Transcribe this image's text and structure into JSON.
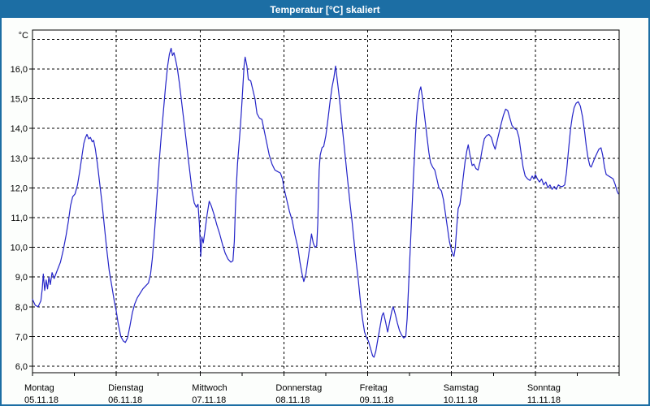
{
  "window": {
    "title": "Temperatur [°C] skaliert"
  },
  "colors": {
    "titlebar_bg": "#1c6ea4",
    "window_border": "#1c6ea4",
    "title_text": "#ffffff",
    "page_bg": "#fcfefc",
    "plot_bg": "#ffffff",
    "grid": "#000000",
    "line": "#2424c8"
  },
  "chart_data": {
    "type": "line",
    "title": "Temperatur [°C] skaliert",
    "y_unit_label": "°C",
    "ylabel": "Temperatur [°C]",
    "xlabel": "",
    "ylim": [
      5.78,
      17.31
    ],
    "grid": "dashed",
    "legend": "none",
    "x_hours_total": 168,
    "x_minor_tick_hours": 12,
    "y_gridline_values": [
      6,
      7,
      8,
      9,
      10,
      11,
      12,
      13,
      14,
      15,
      16,
      17
    ],
    "y_tick_values": [
      6,
      7,
      8,
      9,
      10,
      11,
      12,
      13,
      14,
      15,
      16
    ],
    "y_tick_labels": [
      "6,0",
      "7,0",
      "8,0",
      "9,0",
      "10,0",
      "11,0",
      "12,0",
      "13,0",
      "14,0",
      "15,0",
      "16,0"
    ],
    "days": [
      {
        "name": "Montag",
        "date": "05.11.18"
      },
      {
        "name": "Dienstag",
        "date": "06.11.18"
      },
      {
        "name": "Mittwoch",
        "date": "07.11.18"
      },
      {
        "name": "Donnerstag",
        "date": "08.11.18"
      },
      {
        "name": "Freitag",
        "date": "09.11.18"
      },
      {
        "name": "Samstag",
        "date": "10.11.18"
      },
      {
        "name": "Sonntag",
        "date": "11.11.18"
      }
    ],
    "series": [
      {
        "name": "Temperatur [°C]",
        "color": "#2424c8",
        "points": [
          [
            0,
            8.25
          ],
          [
            0.8,
            8.05
          ],
          [
            1.6,
            8.0
          ],
          [
            2.4,
            8.2
          ],
          [
            2.8,
            8.6
          ],
          [
            3.1,
            9.1
          ],
          [
            3.5,
            8.55
          ],
          [
            3.9,
            8.9
          ],
          [
            4.3,
            8.6
          ],
          [
            4.7,
            9.0
          ],
          [
            5.1,
            8.75
          ],
          [
            5.6,
            9.15
          ],
          [
            6.2,
            8.95
          ],
          [
            7,
            9.2
          ],
          [
            8,
            9.5
          ],
          [
            8.8,
            9.9
          ],
          [
            9.6,
            10.4
          ],
          [
            10.3,
            10.9
          ],
          [
            10.9,
            11.4
          ],
          [
            11.5,
            11.7
          ],
          [
            12.2,
            11.8
          ],
          [
            12.9,
            12.1
          ],
          [
            13.6,
            12.6
          ],
          [
            14.2,
            13.1
          ],
          [
            14.7,
            13.5
          ],
          [
            15.2,
            13.7
          ],
          [
            15.6,
            13.8
          ],
          [
            16.1,
            13.65
          ],
          [
            16.6,
            13.7
          ],
          [
            17.1,
            13.55
          ],
          [
            17.5,
            13.6
          ],
          [
            18,
            13.3
          ],
          [
            18.6,
            12.8
          ],
          [
            19.2,
            12.2
          ],
          [
            19.9,
            11.5
          ],
          [
            20.6,
            10.7
          ],
          [
            21.3,
            9.9
          ],
          [
            22,
            9.2
          ],
          [
            22.7,
            8.7
          ],
          [
            23.4,
            8.2
          ],
          [
            24,
            7.85
          ],
          [
            24.6,
            7.4
          ],
          [
            25.3,
            7.0
          ],
          [
            26,
            6.85
          ],
          [
            26.6,
            6.8
          ],
          [
            27.2,
            6.95
          ],
          [
            27.9,
            7.35
          ],
          [
            28.6,
            7.8
          ],
          [
            29.3,
            8.1
          ],
          [
            30,
            8.3
          ],
          [
            30.8,
            8.45
          ],
          [
            31.6,
            8.6
          ],
          [
            32.4,
            8.7
          ],
          [
            33.2,
            8.8
          ],
          [
            33.8,
            9.1
          ],
          [
            34.3,
            9.6
          ],
          [
            34.8,
            10.3
          ],
          [
            35.3,
            11.1
          ],
          [
            35.8,
            12.0
          ],
          [
            36.3,
            12.9
          ],
          [
            36.9,
            13.8
          ],
          [
            37.5,
            14.6
          ],
          [
            38.1,
            15.4
          ],
          [
            38.7,
            16.1
          ],
          [
            39.2,
            16.5
          ],
          [
            39.7,
            16.7
          ],
          [
            40.1,
            16.45
          ],
          [
            40.5,
            16.55
          ],
          [
            41,
            16.3
          ],
          [
            41.5,
            16.0
          ],
          [
            42.1,
            15.5
          ],
          [
            42.7,
            14.9
          ],
          [
            43.3,
            14.3
          ],
          [
            43.9,
            13.7
          ],
          [
            44.5,
            13.1
          ],
          [
            45.1,
            12.5
          ],
          [
            45.7,
            11.9
          ],
          [
            46.3,
            11.5
          ],
          [
            46.9,
            11.35
          ],
          [
            47.4,
            11.45
          ],
          [
            47.8,
            10.8
          ],
          [
            48.2,
            9.7
          ],
          [
            48.5,
            10.35
          ],
          [
            48.9,
            10.15
          ],
          [
            49.4,
            10.55
          ],
          [
            50,
            11.1
          ],
          [
            50.6,
            11.55
          ],
          [
            51.2,
            11.4
          ],
          [
            52,
            11.1
          ],
          [
            52.8,
            10.75
          ],
          [
            53.6,
            10.45
          ],
          [
            54.4,
            10.1
          ],
          [
            55.2,
            9.8
          ],
          [
            56,
            9.6
          ],
          [
            56.8,
            9.5
          ],
          [
            57.4,
            9.55
          ],
          [
            57.8,
            10.2
          ],
          [
            58.1,
            11.3
          ],
          [
            58.4,
            12.1
          ],
          [
            58.7,
            12.8
          ],
          [
            59.1,
            13.4
          ],
          [
            59.5,
            14.0
          ],
          [
            59.9,
            14.7
          ],
          [
            60.3,
            15.5
          ],
          [
            60.6,
            16.1
          ],
          [
            60.9,
            16.4
          ],
          [
            61.4,
            16.1
          ],
          [
            61.8,
            15.65
          ],
          [
            62.5,
            15.6
          ],
          [
            63.1,
            15.3
          ],
          [
            63.7,
            15.0
          ],
          [
            64.3,
            14.5
          ],
          [
            65,
            14.35
          ],
          [
            65.7,
            14.3
          ],
          [
            66.4,
            13.9
          ],
          [
            67.1,
            13.5
          ],
          [
            67.8,
            13.1
          ],
          [
            68.6,
            12.8
          ],
          [
            69.4,
            12.6
          ],
          [
            70.2,
            12.55
          ],
          [
            71,
            12.5
          ],
          [
            71.6,
            12.3
          ],
          [
            72,
            12.0
          ],
          [
            72.8,
            11.6
          ],
          [
            73.6,
            11.2
          ],
          [
            74.4,
            10.9
          ],
          [
            75.2,
            10.4
          ],
          [
            76,
            10.0
          ],
          [
            76.6,
            9.5
          ],
          [
            77.2,
            9.1
          ],
          [
            77.7,
            8.85
          ],
          [
            78.3,
            9.1
          ],
          [
            78.9,
            9.6
          ],
          [
            79.5,
            10.1
          ],
          [
            79.9,
            10.45
          ],
          [
            80.4,
            10.15
          ],
          [
            80.9,
            10.0
          ],
          [
            81.4,
            10.05
          ],
          [
            81.7,
            10.8
          ],
          [
            81.9,
            11.8
          ],
          [
            82.1,
            12.6
          ],
          [
            82.4,
            13.1
          ],
          [
            82.9,
            13.35
          ],
          [
            83.4,
            13.4
          ],
          [
            84,
            13.75
          ],
          [
            84.6,
            14.3
          ],
          [
            85.2,
            14.9
          ],
          [
            85.8,
            15.4
          ],
          [
            86.3,
            15.7
          ],
          [
            86.8,
            16.1
          ],
          [
            87.3,
            15.6
          ],
          [
            87.9,
            15.0
          ],
          [
            88.5,
            14.3
          ],
          [
            89.1,
            13.6
          ],
          [
            89.7,
            12.9
          ],
          [
            90.3,
            12.2
          ],
          [
            90.9,
            11.5
          ],
          [
            91.5,
            10.9
          ],
          [
            92.1,
            10.2
          ],
          [
            92.7,
            9.5
          ],
          [
            93.3,
            8.9
          ],
          [
            93.9,
            8.2
          ],
          [
            94.5,
            7.6
          ],
          [
            95.1,
            7.15
          ],
          [
            95.7,
            6.95
          ],
          [
            96.2,
            6.85
          ],
          [
            96.8,
            6.6
          ],
          [
            97.4,
            6.35
          ],
          [
            97.8,
            6.3
          ],
          [
            98.3,
            6.5
          ],
          [
            98.9,
            6.9
          ],
          [
            99.5,
            7.3
          ],
          [
            100.1,
            7.7
          ],
          [
            100.5,
            7.8
          ],
          [
            101.1,
            7.5
          ],
          [
            101.7,
            7.15
          ],
          [
            102.3,
            7.5
          ],
          [
            102.9,
            7.85
          ],
          [
            103.3,
            8.0
          ],
          [
            103.9,
            7.75
          ],
          [
            104.5,
            7.45
          ],
          [
            105.1,
            7.2
          ],
          [
            105.7,
            7.05
          ],
          [
            106.3,
            6.95
          ],
          [
            106.9,
            7.0
          ],
          [
            107.3,
            7.6
          ],
          [
            107.6,
            8.4
          ],
          [
            107.9,
            9.2
          ],
          [
            108.2,
            10.0
          ],
          [
            108.5,
            10.8
          ],
          [
            108.8,
            11.6
          ],
          [
            109.1,
            12.4
          ],
          [
            109.4,
            13.1
          ],
          [
            109.7,
            13.8
          ],
          [
            110,
            14.4
          ],
          [
            110.4,
            14.9
          ],
          [
            110.8,
            15.25
          ],
          [
            111.2,
            15.4
          ],
          [
            111.6,
            15.1
          ],
          [
            112,
            14.7
          ],
          [
            112.5,
            14.2
          ],
          [
            113,
            13.7
          ],
          [
            113.5,
            13.2
          ],
          [
            114,
            12.85
          ],
          [
            114.6,
            12.7
          ],
          [
            115.2,
            12.6
          ],
          [
            115.8,
            12.3
          ],
          [
            116.4,
            12.0
          ],
          [
            117.1,
            11.9
          ],
          [
            117.7,
            11.6
          ],
          [
            118.3,
            11.1
          ],
          [
            118.9,
            10.6
          ],
          [
            119.4,
            10.2
          ],
          [
            120,
            9.9
          ],
          [
            120.4,
            9.75
          ],
          [
            120.7,
            9.7
          ],
          [
            121.1,
            10.0
          ],
          [
            121.5,
            10.7
          ],
          [
            121.9,
            11.3
          ],
          [
            122.4,
            11.45
          ],
          [
            122.9,
            11.9
          ],
          [
            123.4,
            12.4
          ],
          [
            123.9,
            12.9
          ],
          [
            124.4,
            13.25
          ],
          [
            124.8,
            13.45
          ],
          [
            125.3,
            13.1
          ],
          [
            125.9,
            12.75
          ],
          [
            126.4,
            12.8
          ],
          [
            127,
            12.65
          ],
          [
            127.6,
            12.6
          ],
          [
            128.2,
            12.9
          ],
          [
            128.8,
            13.3
          ],
          [
            129.4,
            13.65
          ],
          [
            130,
            13.75
          ],
          [
            130.7,
            13.8
          ],
          [
            131.4,
            13.7
          ],
          [
            132,
            13.45
          ],
          [
            132.5,
            13.3
          ],
          [
            133.1,
            13.6
          ],
          [
            133.7,
            13.9
          ],
          [
            134.3,
            14.2
          ],
          [
            134.9,
            14.45
          ],
          [
            135.5,
            14.65
          ],
          [
            136.1,
            14.6
          ],
          [
            136.7,
            14.35
          ],
          [
            137.3,
            14.1
          ],
          [
            138,
            14.0
          ],
          [
            138.7,
            13.95
          ],
          [
            139.3,
            13.7
          ],
          [
            139.9,
            13.2
          ],
          [
            140.5,
            12.7
          ],
          [
            141.1,
            12.4
          ],
          [
            141.8,
            12.3
          ],
          [
            142.5,
            12.25
          ],
          [
            143.1,
            12.4
          ],
          [
            143.6,
            12.3
          ],
          [
            144,
            12.45
          ],
          [
            144.6,
            12.3
          ],
          [
            145.2,
            12.2
          ],
          [
            145.8,
            12.3
          ],
          [
            146.4,
            12.1
          ],
          [
            147,
            12.2
          ],
          [
            147.6,
            12.0
          ],
          [
            148.2,
            12.1
          ],
          [
            148.8,
            11.95
          ],
          [
            149.4,
            12.05
          ],
          [
            150,
            11.95
          ],
          [
            150.6,
            12.1
          ],
          [
            151.2,
            12.05
          ],
          [
            151.8,
            12.05
          ],
          [
            152.4,
            12.1
          ],
          [
            152.9,
            12.5
          ],
          [
            153.3,
            13.0
          ],
          [
            153.7,
            13.5
          ],
          [
            154.1,
            14.0
          ],
          [
            154.6,
            14.4
          ],
          [
            155.1,
            14.7
          ],
          [
            155.7,
            14.85
          ],
          [
            156.3,
            14.9
          ],
          [
            156.9,
            14.75
          ],
          [
            157.5,
            14.4
          ],
          [
            158.1,
            13.9
          ],
          [
            158.6,
            13.4
          ],
          [
            159.1,
            13.0
          ],
          [
            159.6,
            12.75
          ],
          [
            160,
            12.7
          ],
          [
            160.5,
            12.85
          ],
          [
            161,
            13.0
          ],
          [
            161.6,
            13.15
          ],
          [
            162.2,
            13.3
          ],
          [
            162.8,
            13.35
          ],
          [
            163.3,
            13.1
          ],
          [
            163.8,
            12.7
          ],
          [
            164.3,
            12.45
          ],
          [
            165,
            12.4
          ],
          [
            165.7,
            12.35
          ],
          [
            166.3,
            12.3
          ],
          [
            166.9,
            12.1
          ],
          [
            167.4,
            11.9
          ],
          [
            167.8,
            11.8
          ]
        ]
      }
    ]
  }
}
